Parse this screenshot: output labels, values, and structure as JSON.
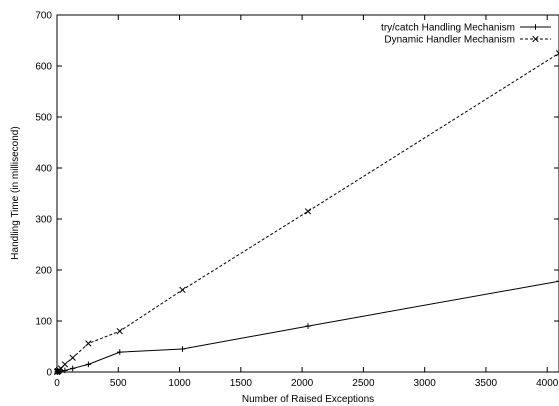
{
  "chart_data": {
    "type": "line",
    "title": "",
    "xlabel": "Number of Raised Exceptions",
    "ylabel": "Handling Time (in millisecond)",
    "xlim": [
      0,
      4096
    ],
    "ylim": [
      0,
      700
    ],
    "xticks": [
      0,
      500,
      1000,
      1500,
      2000,
      2500,
      3000,
      3500,
      4000
    ],
    "yticks": [
      0,
      100,
      200,
      300,
      400,
      500,
      600,
      700
    ],
    "grid": false,
    "legend_position": "top-right",
    "series": [
      {
        "name": "try/catch Handling Mechanism",
        "line_style": "solid",
        "marker": "plus",
        "color": "#000000",
        "x": [
          1,
          2,
          4,
          8,
          16,
          32,
          64,
          128,
          256,
          512,
          1024,
          2048,
          4096
        ],
        "y": [
          0,
          0,
          0,
          1,
          1,
          2,
          3,
          7,
          15,
          39,
          45,
          90,
          178
        ]
      },
      {
        "name": "Dynamic Handler Mechanism",
        "line_style": "dashed",
        "marker": "cross",
        "color": "#000000",
        "x": [
          1,
          2,
          4,
          8,
          16,
          32,
          64,
          128,
          256,
          512,
          1024,
          2048,
          4096
        ],
        "y": [
          0,
          1,
          1,
          2,
          4,
          7,
          15,
          28,
          56,
          80,
          161,
          315,
          625
        ]
      }
    ]
  }
}
